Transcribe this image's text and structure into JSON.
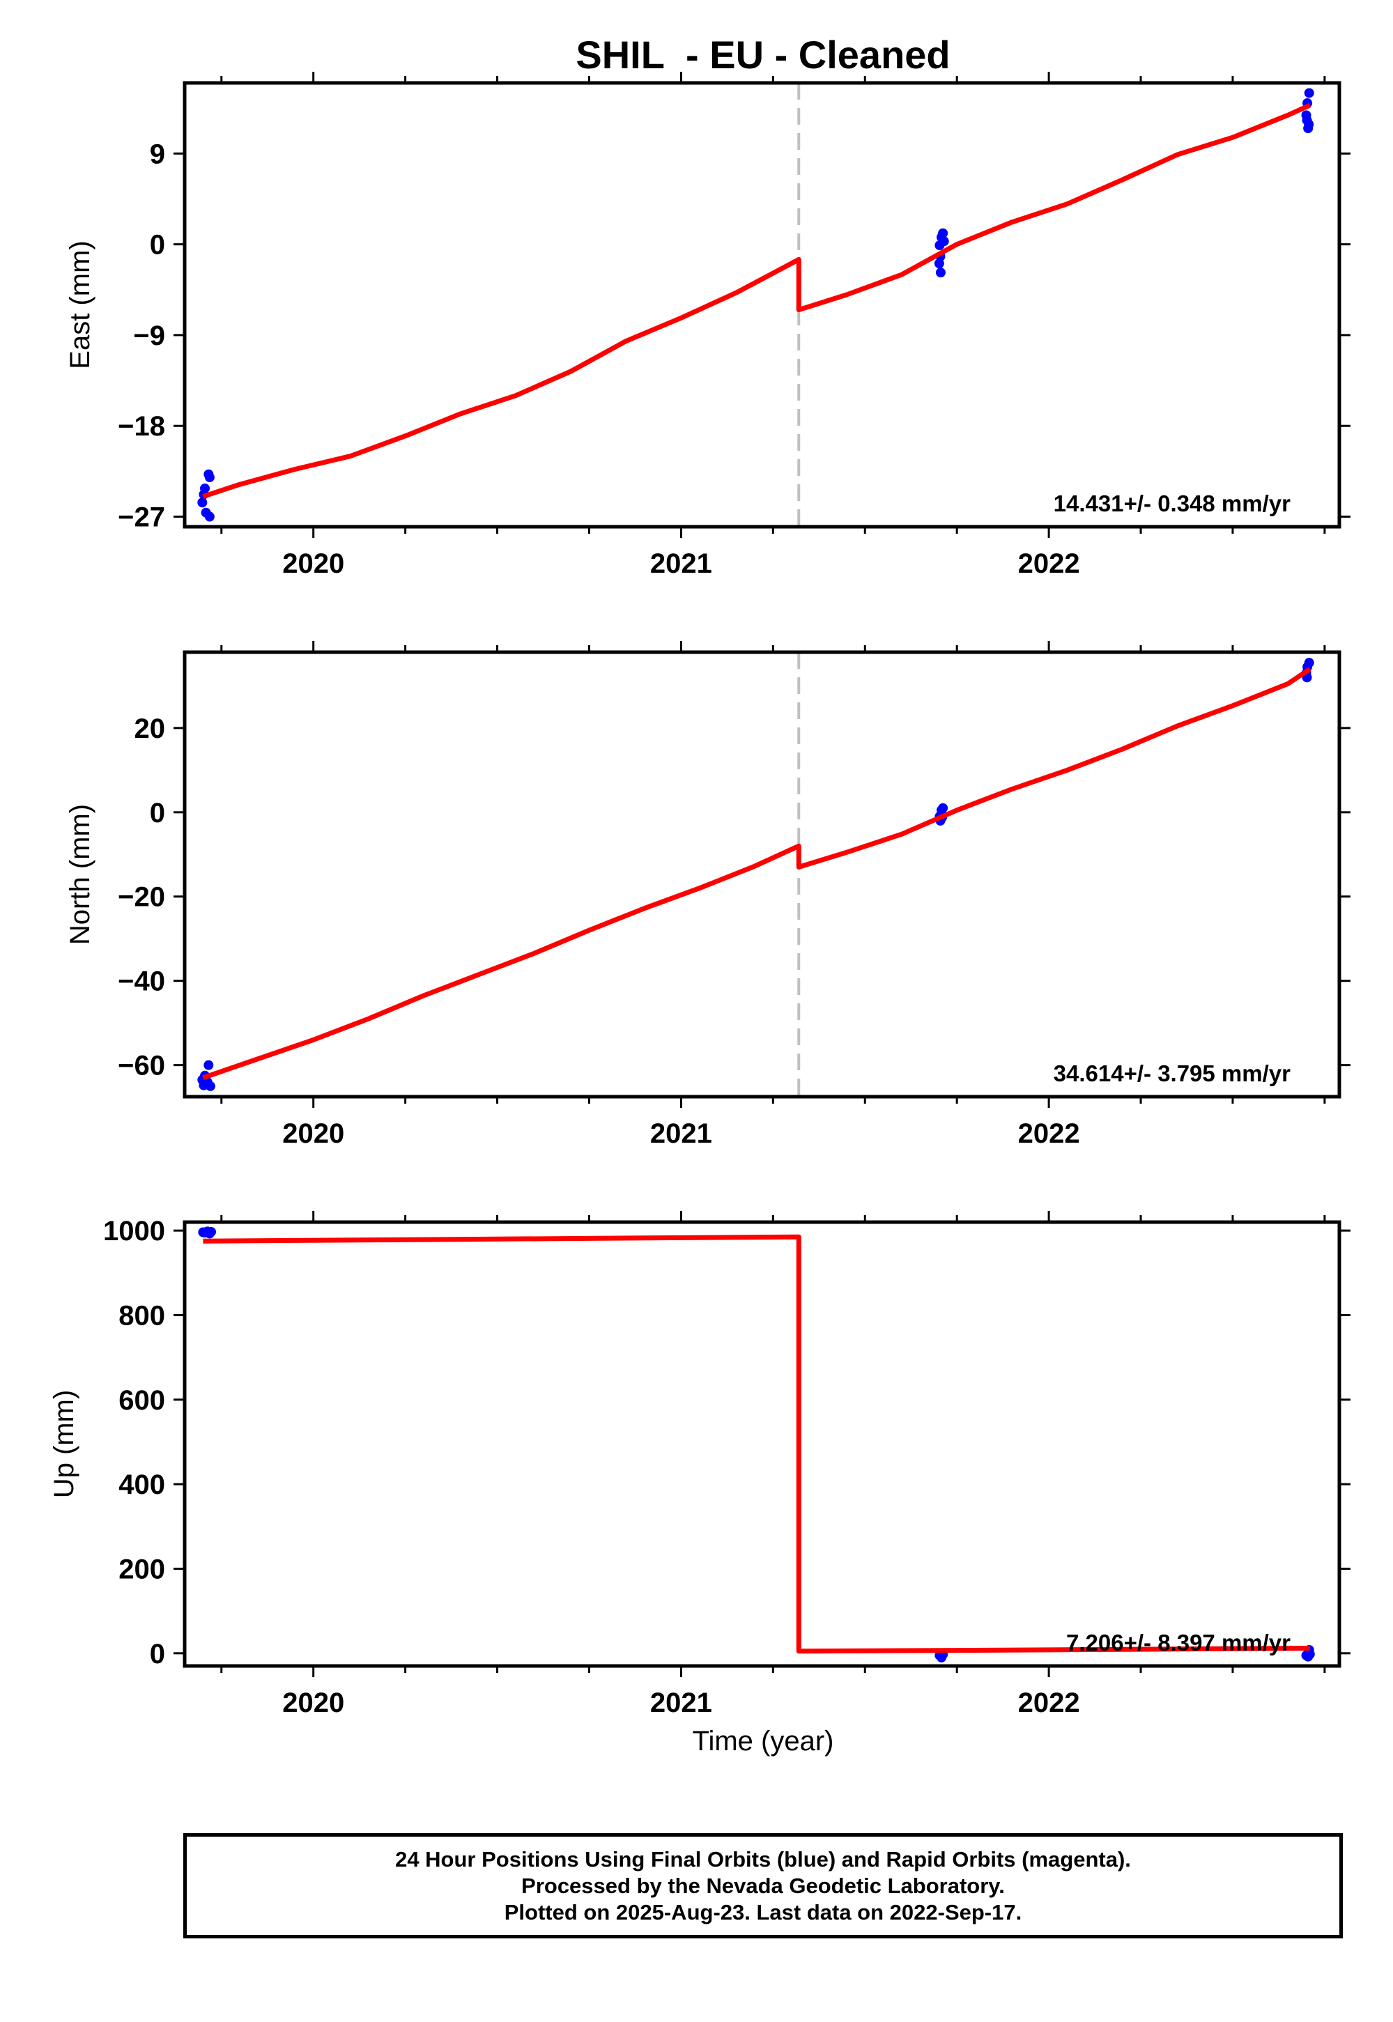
{
  "title": "SHIL  - EU - Cleaned",
  "colors": {
    "fit_line": "#ff0000",
    "data_points": "#0000ff",
    "frame": "#000000",
    "event_line": "#c0c0c0"
  },
  "x_axis": {
    "label": "Time (year)",
    "range": [
      2019.65,
      2022.79
    ],
    "major_ticks": [
      2020,
      2021,
      2022
    ],
    "tick_labels": [
      "2020",
      "2021",
      "2022"
    ],
    "minor_tick_step_months": 3
  },
  "event_year": 2021.32,
  "chart_data": [
    {
      "type": "scatter",
      "panel": "east",
      "ylabel": "East (mm)",
      "ylim": [
        -28,
        16
      ],
      "yticks": [
        9,
        0,
        -9,
        -18,
        -27
      ],
      "ytick_labels": [
        "9",
        "0",
        "−9",
        "−18",
        "−27"
      ],
      "velocity_text": "14.431+/- 0.348 mm/yr",
      "points": [
        {
          "x": 2019.715,
          "y": -22.8
        },
        {
          "x": 2019.718,
          "y": -23.1
        },
        {
          "x": 2019.705,
          "y": -24.2
        },
        {
          "x": 2019.702,
          "y": -24.8
        },
        {
          "x": 2019.698,
          "y": -25.6
        },
        {
          "x": 2019.708,
          "y": -26.6
        },
        {
          "x": 2019.718,
          "y": -27.0
        },
        {
          "x": 2021.703,
          "y": -0.1
        },
        {
          "x": 2021.708,
          "y": 0.7
        },
        {
          "x": 2021.712,
          "y": 1.1
        },
        {
          "x": 2021.715,
          "y": 0.3
        },
        {
          "x": 2021.705,
          "y": -1.2
        },
        {
          "x": 2021.702,
          "y": -1.9
        },
        {
          "x": 2021.706,
          "y": -2.8
        },
        {
          "x": 2022.708,
          "y": 15.0
        },
        {
          "x": 2022.703,
          "y": 14.0
        },
        {
          "x": 2022.7,
          "y": 12.8
        },
        {
          "x": 2022.702,
          "y": 12.3
        },
        {
          "x": 2022.707,
          "y": 11.9
        },
        {
          "x": 2022.705,
          "y": 11.5
        }
      ],
      "fit": {
        "name": "",
        "pre": [
          [
            2019.7,
            -25.0
          ],
          [
            2019.8,
            -23.8
          ],
          [
            2019.95,
            -22.3
          ],
          [
            2020.1,
            -21.0
          ],
          [
            2020.25,
            -19.0
          ],
          [
            2020.4,
            -16.8
          ],
          [
            2020.55,
            -15.0
          ],
          [
            2020.7,
            -12.6
          ],
          [
            2020.85,
            -9.6
          ],
          [
            2021.0,
            -7.3
          ],
          [
            2021.15,
            -4.8
          ],
          [
            2021.32,
            -1.5
          ]
        ],
        "post": [
          [
            2021.32,
            -6.5
          ],
          [
            2021.45,
            -5.0
          ],
          [
            2021.6,
            -3.0
          ],
          [
            2021.75,
            0.0
          ],
          [
            2021.9,
            2.2
          ],
          [
            2022.05,
            4.0
          ],
          [
            2022.2,
            6.4
          ],
          [
            2022.35,
            8.9
          ],
          [
            2022.5,
            10.6
          ],
          [
            2022.65,
            12.8
          ],
          [
            2022.71,
            13.8
          ]
        ]
      }
    },
    {
      "type": "scatter",
      "panel": "north",
      "ylabel": "North (mm)",
      "ylim": [
        -67.5,
        38
      ],
      "yticks": [
        20,
        0,
        -20,
        -40,
        -60
      ],
      "ytick_labels": [
        "20",
        "0",
        "−20",
        "−40",
        "−60"
      ],
      "velocity_text": "34.614+/- 3.795 mm/yr",
      "points": [
        {
          "x": 2019.715,
          "y": -60.0
        },
        {
          "x": 2019.705,
          "y": -62.5
        },
        {
          "x": 2019.698,
          "y": -63.5
        },
        {
          "x": 2019.712,
          "y": -64.0
        },
        {
          "x": 2019.72,
          "y": -65.0
        },
        {
          "x": 2019.702,
          "y": -64.8
        },
        {
          "x": 2021.703,
          "y": -1.0
        },
        {
          "x": 2021.708,
          "y": 0.5
        },
        {
          "x": 2021.712,
          "y": 1.0
        },
        {
          "x": 2021.705,
          "y": -2.0
        },
        {
          "x": 2021.71,
          "y": -1.2
        },
        {
          "x": 2022.703,
          "y": 34.5
        },
        {
          "x": 2022.708,
          "y": 35.5
        },
        {
          "x": 2022.7,
          "y": 33.0
        },
        {
          "x": 2022.702,
          "y": 32.0
        }
      ],
      "fit": {
        "name": "",
        "pre": [
          [
            2019.7,
            -63.0
          ],
          [
            2019.85,
            -58.5
          ],
          [
            2020.0,
            -54.0
          ],
          [
            2020.15,
            -49.0
          ],
          [
            2020.3,
            -43.5
          ],
          [
            2020.45,
            -38.5
          ],
          [
            2020.6,
            -33.5
          ],
          [
            2020.75,
            -28.0
          ],
          [
            2020.9,
            -22.8
          ],
          [
            2021.05,
            -18.0
          ],
          [
            2021.2,
            -12.8
          ],
          [
            2021.32,
            -8.0
          ]
        ],
        "post": [
          [
            2021.32,
            -13.0
          ],
          [
            2021.45,
            -9.5
          ],
          [
            2021.6,
            -5.2
          ],
          [
            2021.75,
            0.5
          ],
          [
            2021.9,
            5.5
          ],
          [
            2022.05,
            10.0
          ],
          [
            2022.2,
            15.0
          ],
          [
            2022.35,
            20.5
          ],
          [
            2022.5,
            25.3
          ],
          [
            2022.65,
            30.5
          ],
          [
            2022.71,
            34.0
          ]
        ]
      }
    },
    {
      "type": "scatter",
      "panel": "up",
      "ylabel": "Up (mm)",
      "ylim": [
        -30,
        1020
      ],
      "yticks": [
        1000,
        800,
        600,
        400,
        200,
        0
      ],
      "ytick_labels": [
        "1000",
        "800",
        "600",
        "400",
        "200",
        "0"
      ],
      "velocity_text": "7.206+/- 8.397 mm/yr",
      "points": [
        {
          "x": 2019.705,
          "y": 995
        },
        {
          "x": 2019.712,
          "y": 998
        },
        {
          "x": 2019.718,
          "y": 993
        },
        {
          "x": 2019.7,
          "y": 996
        },
        {
          "x": 2019.722,
          "y": 997
        },
        {
          "x": 2021.703,
          "y": -5
        },
        {
          "x": 2021.708,
          "y": -10
        },
        {
          "x": 2021.712,
          "y": -3
        },
        {
          "x": 2022.7,
          "y": -5
        },
        {
          "x": 2022.705,
          "y": -8
        },
        {
          "x": 2022.71,
          "y": -2
        },
        {
          "x": 2022.708,
          "y": 8
        }
      ],
      "fit": {
        "name": "",
        "pre": [
          [
            2019.7,
            975
          ],
          [
            2021.32,
            985
          ]
        ],
        "post": [
          [
            2021.32,
            5
          ],
          [
            2022.0,
            8
          ],
          [
            2022.71,
            12
          ]
        ]
      }
    }
  ],
  "footer": {
    "line1": "24 Hour Positions Using Final Orbits (blue) and Rapid Orbits (magenta).",
    "line2": "Processed by the Nevada Geodetic Laboratory.",
    "line3": "Plotted on 2025-Aug-23. Last data on 2022-Sep-17."
  }
}
